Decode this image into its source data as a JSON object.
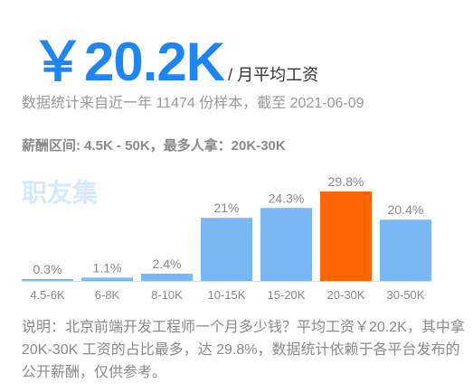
{
  "headline": {
    "value": "￥20.2K",
    "unit": "/ 月平均工资"
  },
  "stat_line": "数据统计来自近一年 11474 份样本，截至 2021-06-09",
  "range_line": "薪酬区间: 4.5K - 50K，最多人拿：20K-30K",
  "watermark": "职友集",
  "chart_data": {
    "type": "bar",
    "categories": [
      "4.5-6K",
      "6-8K",
      "8-10K",
      "10-15K",
      "15-20K",
      "20-30K",
      "30-50K"
    ],
    "values": [
      0.3,
      1.1,
      2.4,
      21,
      24.3,
      29.8,
      20.4
    ],
    "value_labels": [
      "0.3%",
      "1.1%",
      "2.4%",
      "21%",
      "24.3%",
      "29.8%",
      "20.4%"
    ],
    "unit": "%",
    "highlight_index": 5,
    "colors": {
      "bar": "#7ab8f5",
      "highlight": "#ff6600",
      "axis": "#dddddd",
      "label": "#888888"
    },
    "title": "",
    "xlabel": "",
    "ylabel": "",
    "ylim": [
      0,
      29.8
    ],
    "grid": false
  },
  "description": "说明：北京前端开发工程师一个月多少钱？平均工资￥20.2K，其中拿 20K-30K 工资的占比最多，达 29.8%，数据统计依赖于各平台发布的公开薪酬，仅供参考。"
}
